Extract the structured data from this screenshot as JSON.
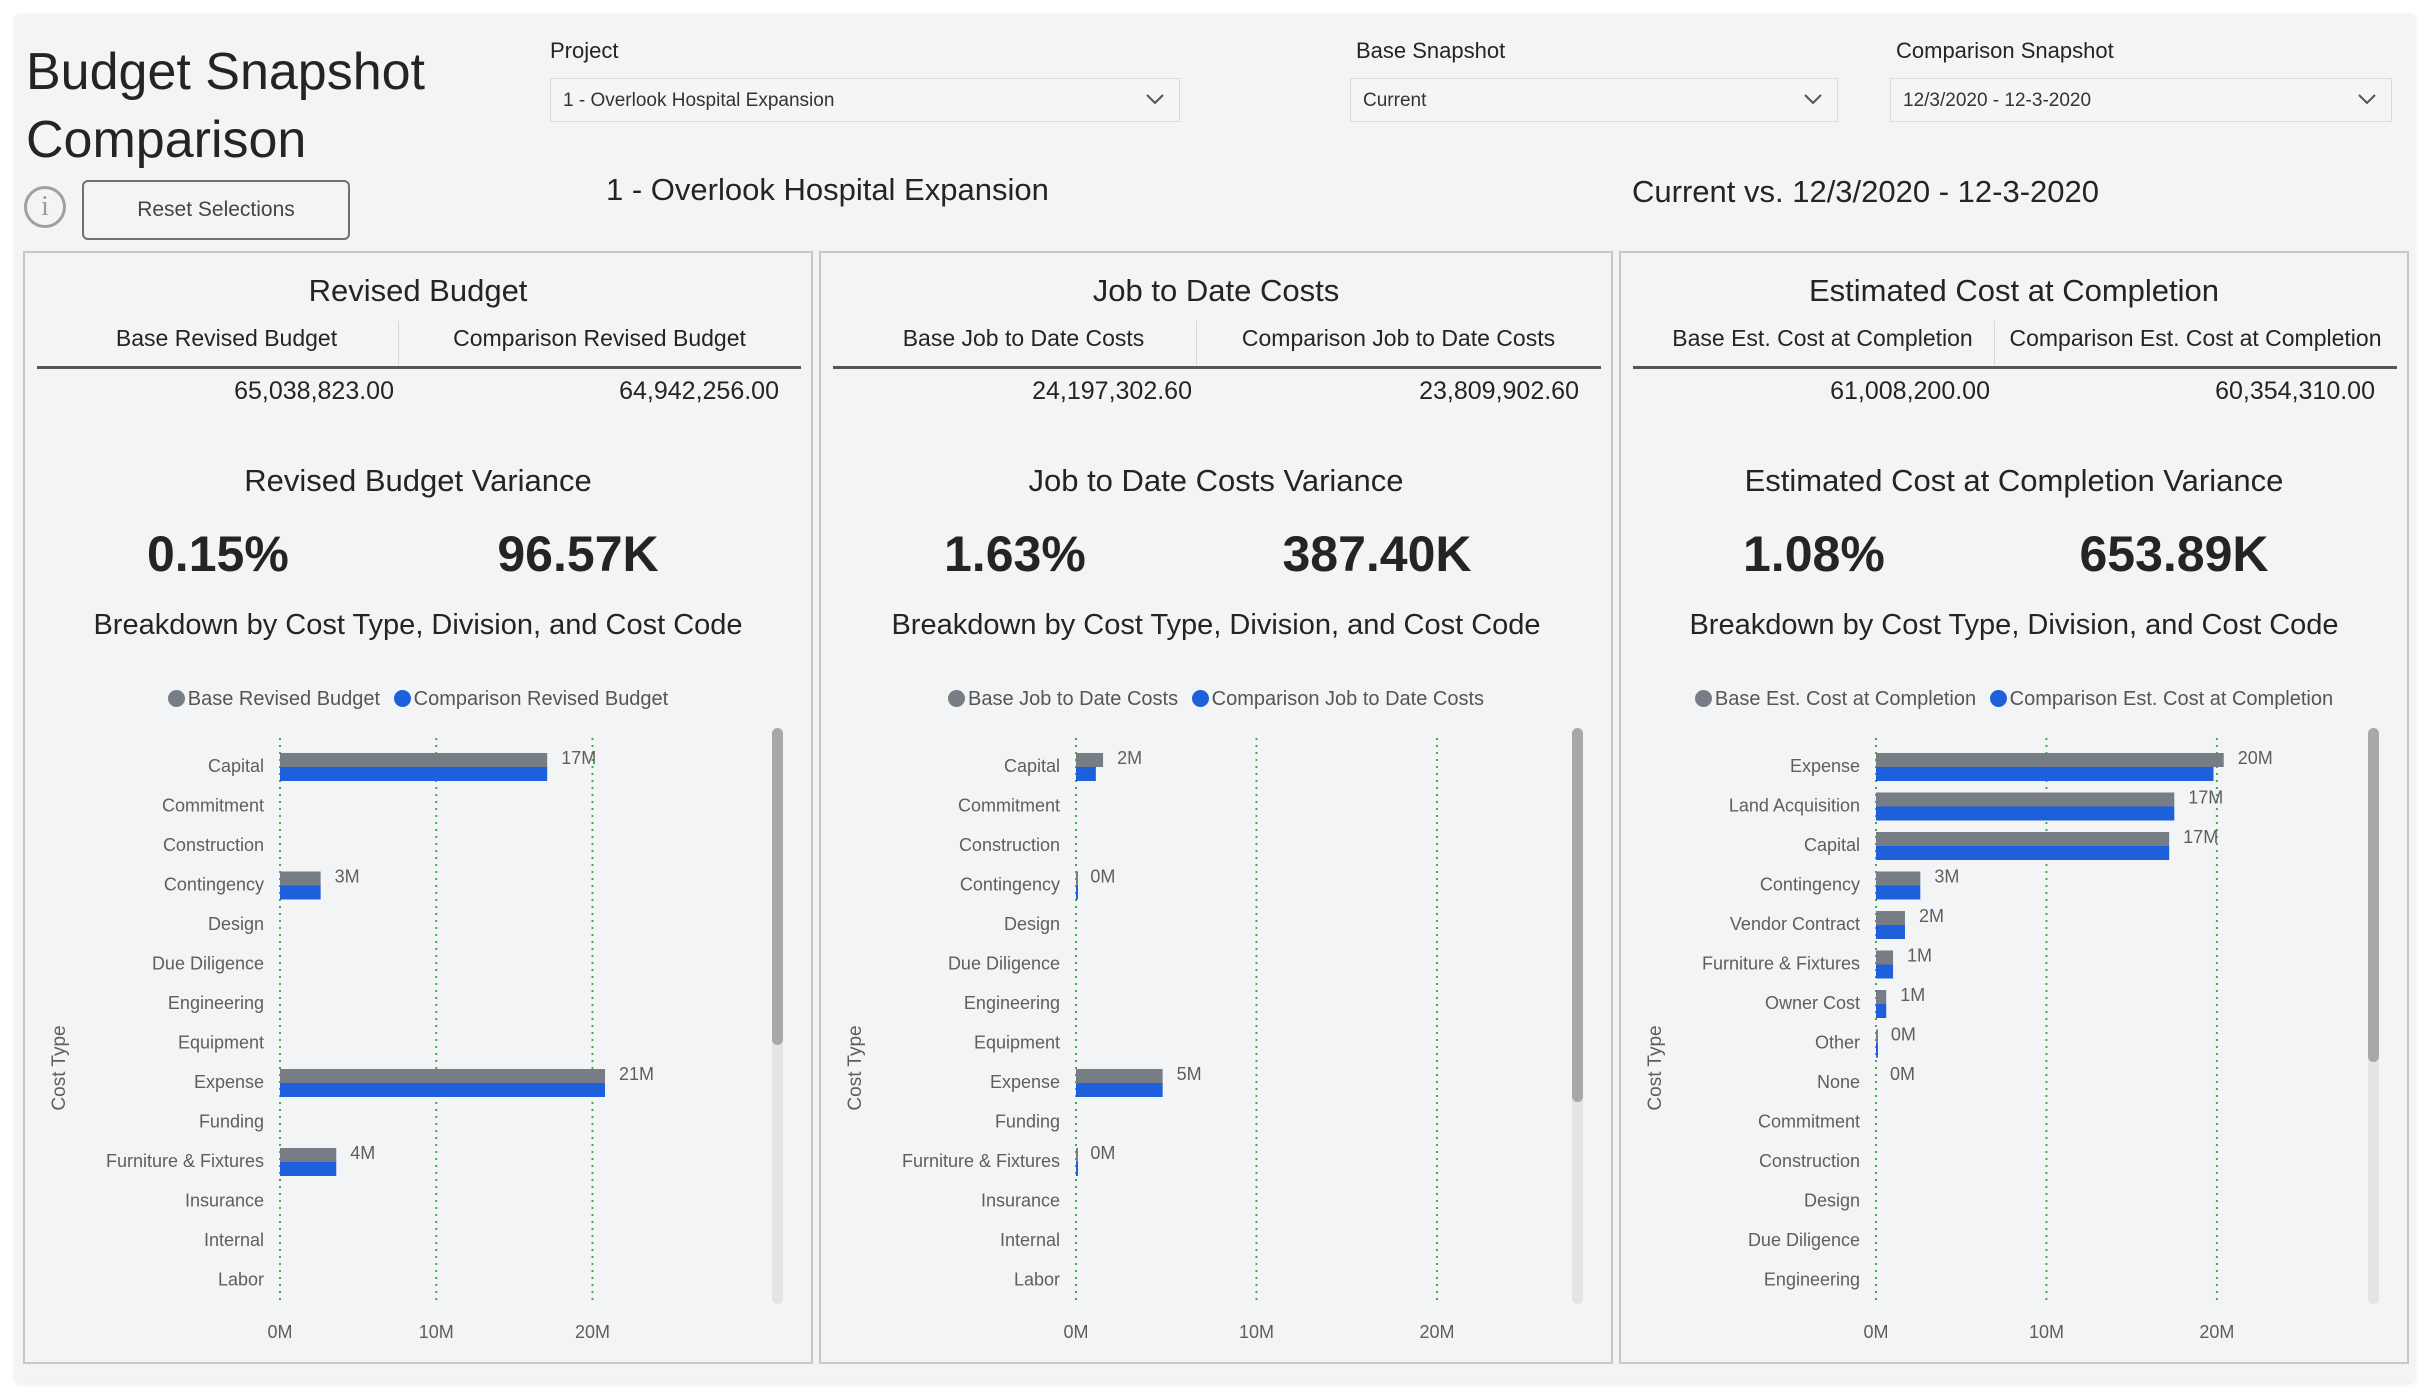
{
  "header": {
    "title_line1": "Budget Snapshot",
    "title_line2": "Comparison",
    "info_icon": "i",
    "reset_label": "Reset Selections"
  },
  "filters": {
    "project_label": "Project",
    "project_value": "1 - Overlook Hospital Expansion",
    "base_label": "Base Snapshot",
    "base_value": "Current",
    "comparison_label": "Comparison Snapshot",
    "comparison_value": "12/3/2020 - 12-3-2020"
  },
  "subheader": {
    "project": "1 - Overlook Hospital Expansion",
    "comparison": "Current vs. 12/3/2020 - 12-3-2020"
  },
  "colors": {
    "base": "#767d84",
    "comparison": "#1e5fdc",
    "gridline": "#3cb043",
    "axis_text": "#605e5c"
  },
  "panels": [
    {
      "title": "Revised Budget",
      "base_header": "Base Revised Budget",
      "comparison_header": "Comparison Revised Budget",
      "base_value": "65,038,823.00",
      "comparison_value": "64,942,256.00",
      "variance_title": "Revised Budget Variance",
      "variance_pct": "0.15%",
      "variance_amt": "96.57K",
      "breakdown_title": "Breakdown by Cost Type, Division, and Cost Code",
      "legend_base": "Base Revised Budget",
      "legend_comparison": "Comparison Revised Budget",
      "chart_data": {
        "type": "bar",
        "orientation": "horizontal",
        "ylabel": "Cost Type",
        "categories": [
          "Capital",
          "Commitment",
          "Construction",
          "Contingency",
          "Design",
          "Due Diligence",
          "Engineering",
          "Equipment",
          "Expense",
          "Funding",
          "Furniture & Fixtures",
          "Insurance",
          "Internal",
          "Labor"
        ],
        "series": [
          {
            "name": "Base Revised Budget",
            "values": [
              17.1,
              null,
              null,
              2.6,
              null,
              null,
              null,
              null,
              20.8,
              null,
              3.6,
              null,
              null,
              null
            ]
          },
          {
            "name": "Comparison Revised Budget",
            "values": [
              17.1,
              null,
              null,
              2.6,
              null,
              null,
              null,
              null,
              20.8,
              null,
              3.6,
              null,
              null,
              null
            ]
          }
        ],
        "data_labels": [
          "17M",
          "",
          "",
          "3M",
          "",
          "",
          "",
          "",
          "21M",
          "",
          "4M",
          "",
          "",
          ""
        ],
        "x_ticks": [
          "0M",
          "10M",
          "20M"
        ],
        "xlim": [
          0,
          24
        ],
        "scroll_thumb": [
          0,
          0.55
        ]
      }
    },
    {
      "title": "Job to Date Costs",
      "base_header": "Base Job to Date Costs",
      "comparison_header": "Comparison Job to Date Costs",
      "base_value": "24,197,302.60",
      "comparison_value": "23,809,902.60",
      "variance_title": "Job to Date Costs Variance",
      "variance_pct": "1.63%",
      "variance_amt": "387.40K",
      "breakdown_title": "Breakdown by Cost Type, Division, and Cost Code",
      "legend_base": "Base Job to Date Costs",
      "legend_comparison": "Comparison Job to Date Costs",
      "chart_data": {
        "type": "bar",
        "orientation": "horizontal",
        "ylabel": "Cost Type",
        "categories": [
          "Capital",
          "Commitment",
          "Construction",
          "Contingency",
          "Design",
          "Due Diligence",
          "Engineering",
          "Equipment",
          "Expense",
          "Funding",
          "Furniture & Fixtures",
          "Insurance",
          "Internal",
          "Labor"
        ],
        "series": [
          {
            "name": "Base Job to Date Costs",
            "values": [
              1.5,
              null,
              null,
              0.02,
              null,
              null,
              null,
              null,
              4.8,
              null,
              0.02,
              null,
              null,
              null
            ]
          },
          {
            "name": "Comparison Job to Date Costs",
            "values": [
              1.1,
              null,
              null,
              0.02,
              null,
              null,
              null,
              null,
              4.8,
              null,
              0.02,
              null,
              null,
              null
            ]
          }
        ],
        "data_labels": [
          "2M",
          "",
          "",
          "0M",
          "",
          "",
          "",
          "",
          "5M",
          "",
          "0M",
          "",
          "",
          ""
        ],
        "x_ticks": [
          "0M",
          "10M",
          "20M"
        ],
        "xlim": [
          0,
          21
        ],
        "scroll_thumb": [
          0,
          0.65
        ]
      }
    },
    {
      "title": "Estimated Cost at Completion",
      "base_header": "Base Est. Cost at Completion",
      "comparison_header": "Comparison Est. Cost at Completion",
      "base_value": "61,008,200.00",
      "comparison_value": "60,354,310.00",
      "variance_title": "Estimated Cost at Completion Variance",
      "variance_pct": "1.08%",
      "variance_amt": "653.89K",
      "breakdown_title": "Breakdown by Cost Type, Division, and Cost Code",
      "legend_base": "Base Est. Cost at Completion",
      "legend_comparison": "Comparison Est. Cost at Completion",
      "chart_data": {
        "type": "bar",
        "orientation": "horizontal",
        "ylabel": "Cost Type",
        "categories": [
          "Expense",
          "Land Acquisition",
          "Capital",
          "Contingency",
          "Vendor Contract",
          "Furniture & Fixtures",
          "Owner Cost",
          "Other",
          "None",
          "Commitment",
          "Construction",
          "Design",
          "Due Diligence",
          "Engineering"
        ],
        "series": [
          {
            "name": "Base Est. Cost at Completion",
            "values": [
              20.4,
              17.5,
              17.2,
              2.6,
              1.7,
              1.0,
              0.6,
              0.05,
              null,
              null,
              null,
              null,
              null,
              null
            ]
          },
          {
            "name": "Comparison Est. Cost at Completion",
            "values": [
              19.8,
              17.5,
              17.2,
              2.6,
              1.7,
              1.0,
              0.6,
              0.05,
              null,
              null,
              null,
              null,
              null,
              null
            ]
          }
        ],
        "data_labels": [
          "20M",
          "17M",
          "17M",
          "3M",
          "2M",
          "1M",
          "1M",
          "0M",
          "0M",
          "",
          "",
          "",
          "",
          ""
        ],
        "x_ticks": [
          "0M",
          "10M",
          "20M"
        ],
        "xlim": [
          0,
          22
        ],
        "scroll_thumb": [
          0,
          0.58
        ]
      }
    }
  ]
}
